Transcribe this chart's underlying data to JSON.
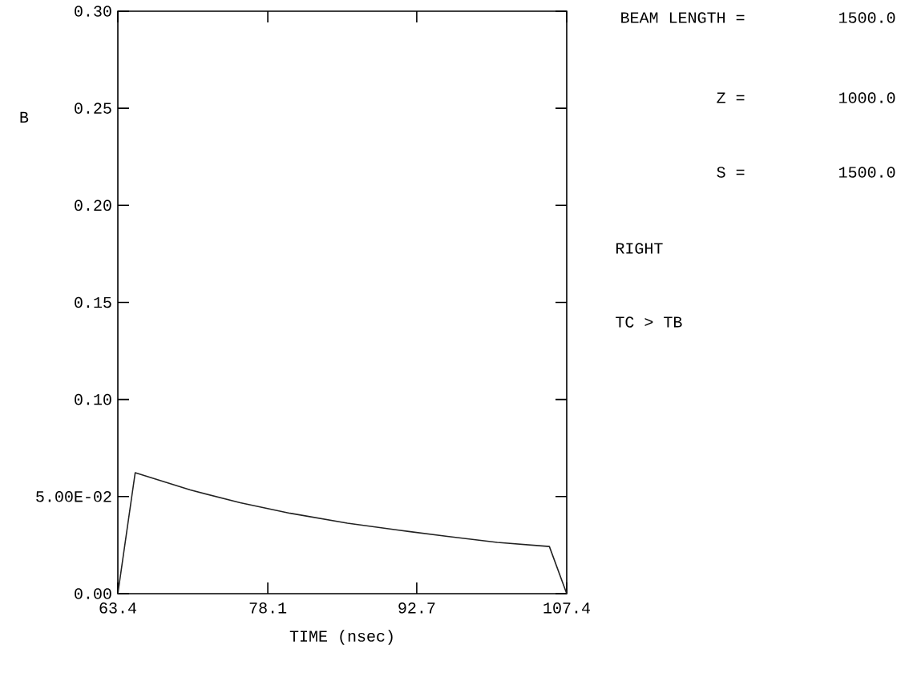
{
  "chart_data": {
    "type": "line",
    "xlabel": "TIME (nsec)",
    "ylabel": "B",
    "x": [
      63.4,
      65.1,
      70.5,
      75.4,
      80.3,
      85.9,
      90.8,
      95.7,
      100.6,
      105.7,
      107.4
    ],
    "series": [
      {
        "color": "#222222",
        "values": [
          0,
          0.0623,
          0.0534,
          0.0468,
          0.0414,
          0.0363,
          0.0328,
          0.0295,
          0.0264,
          0.0243,
          0
        ]
      }
    ],
    "xlim": [
      63.4,
      107.4
    ],
    "ylim": [
      0,
      0.3
    ],
    "xticks": [
      63.4,
      78.1,
      92.7,
      107.4
    ],
    "yticks": [
      {
        "value": 0,
        "label": "0.00"
      },
      {
        "value": 0.05,
        "label": "5.00E-02"
      },
      {
        "value": 0.1,
        "label": "0.10"
      },
      {
        "value": 0.15,
        "label": "0.15"
      },
      {
        "value": 0.2,
        "label": "0.20"
      },
      {
        "value": 0.25,
        "label": "0.25"
      },
      {
        "value": 0.3,
        "label": "0.30"
      }
    ],
    "grid": false,
    "marker": "none",
    "line_style": "solid",
    "annotations": [
      "BEAM LENGTH =",
      "1500.0",
      "Z =",
      "1000.0",
      "S =",
      "1500.0",
      "RIGHT",
      "TC > TB"
    ]
  }
}
